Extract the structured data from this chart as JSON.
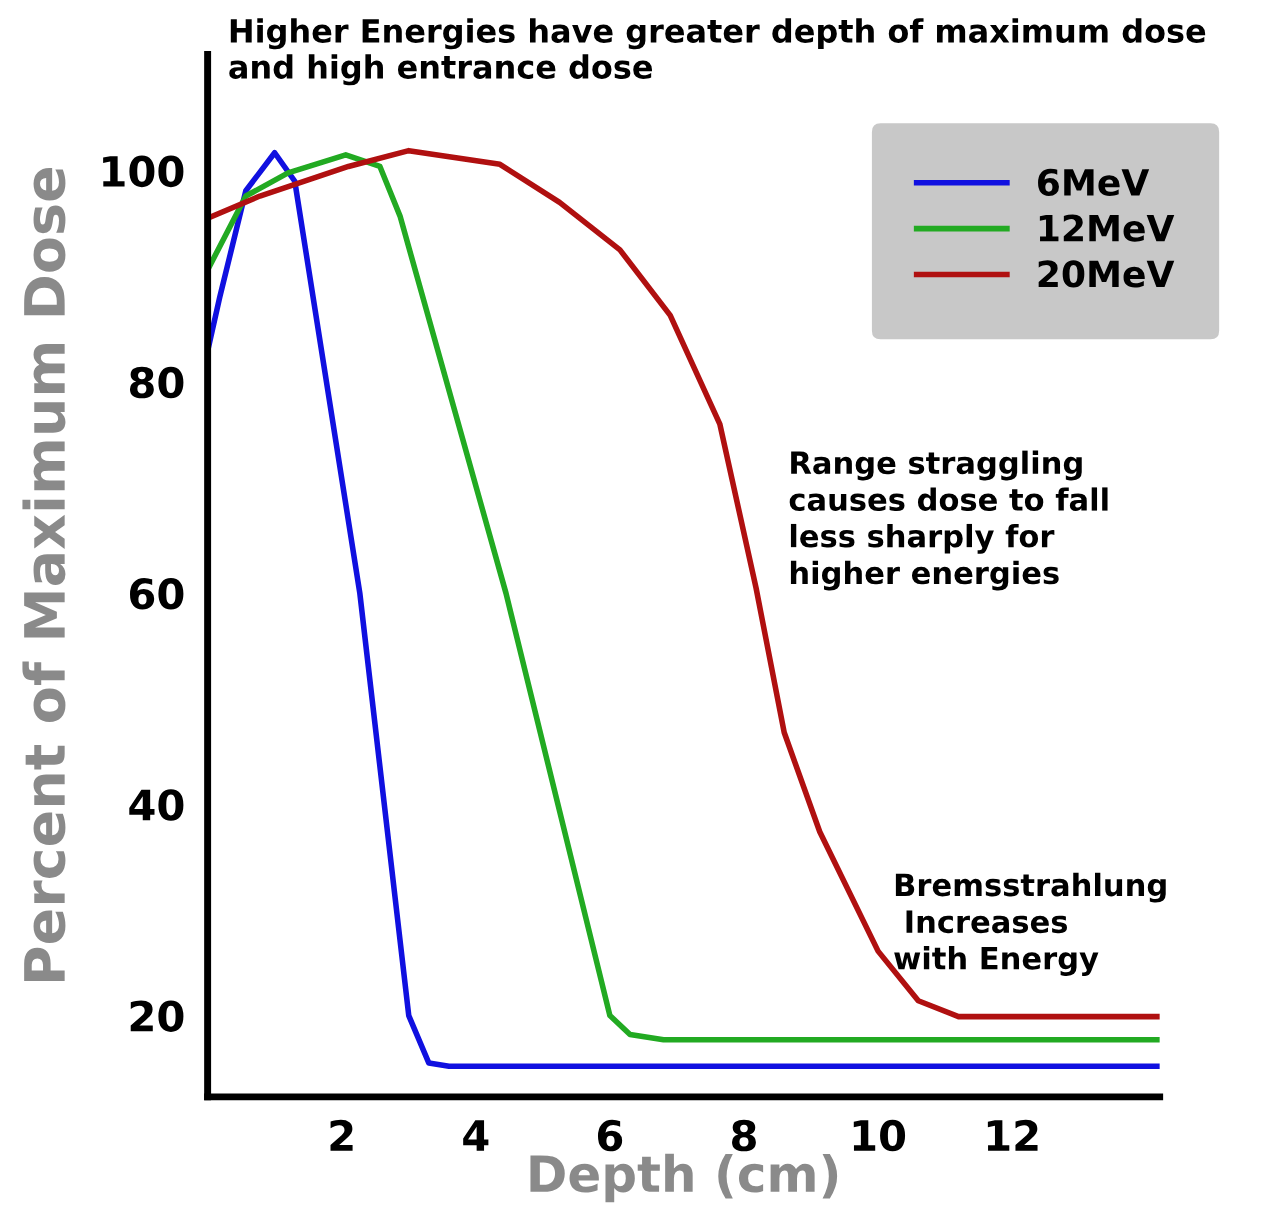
{
  "chart_data": {
    "type": "line",
    "title": "Higher Energies have greater depth of maximum dose\nand high entrance dose",
    "xlabel": "Depth (cm)",
    "ylabel": "Percent of Maximum Dose",
    "xlim": [
      0,
      14.2
    ],
    "ylim": [
      12.3,
      111
    ],
    "xticks": [
      2,
      4,
      6,
      8,
      10,
      12
    ],
    "yticks": [
      20,
      40,
      60,
      80,
      100
    ],
    "grid": false,
    "legend": "top right",
    "line_style": "solid",
    "marker": "none",
    "series": [
      {
        "name": "6MeV",
        "color": "#1010e0",
        "x": [
          0,
          0.18,
          0.57,
          1.0,
          1.3,
          2.27,
          3.0,
          3.3,
          3.6,
          14.2
        ],
        "values": [
          82.9,
          88,
          98.1,
          101.7,
          99,
          60,
          20,
          15.5,
          15.2,
          15.2
        ]
      },
      {
        "name": "12MeV",
        "color": "#22aa22",
        "x": [
          0,
          0.57,
          1.2,
          2.06,
          2.57,
          2.87,
          4.45,
          6.0,
          6.3,
          6.8,
          14.2
        ],
        "values": [
          90.6,
          97.6,
          99.8,
          101.5,
          100.4,
          95.7,
          60,
          20,
          18.2,
          17.7,
          17.7
        ]
      },
      {
        "name": "20MeV",
        "color": "#b01010",
        "x": [
          0,
          0.78,
          2.1,
          3.0,
          4.36,
          5.25,
          6.15,
          6.9,
          7.64,
          8.18,
          8.6,
          9.13,
          10.0,
          10.6,
          11.2,
          14.2
        ],
        "values": [
          95.5,
          97.6,
          100.4,
          101.9,
          100.6,
          97,
          92.5,
          86.3,
          76,
          60.5,
          46.8,
          37.4,
          26.1,
          21.4,
          19.9,
          19.9
        ]
      }
    ],
    "annotations": [
      "Range straggling\ncauses dose to fall\nless sharply for\nhigher energies",
      "Bremsstrahlung\n Increases\nwith Energy"
    ]
  }
}
